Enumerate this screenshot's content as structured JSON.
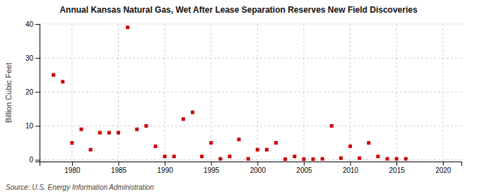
{
  "chart_data": {
    "type": "scatter",
    "title": "Annual Kansas Natural Gas, Wet After Lease Separation Reserves New Field Discoveries",
    "ylabel": "Billion Cubic Feet",
    "source": "Source: U.S. Energy Information Administration",
    "x": [
      1978,
      1979,
      1980,
      1981,
      1982,
      1983,
      1984,
      1985,
      1986,
      1987,
      1988,
      1989,
      1990,
      1991,
      1992,
      1993,
      1994,
      1995,
      1996,
      1997,
      1998,
      1999,
      2000,
      2001,
      2002,
      2003,
      2004,
      2005,
      2006,
      2007,
      2008,
      2009,
      2010,
      2011,
      2012,
      2013,
      2014,
      2015,
      2016
    ],
    "values": [
      25,
      23,
      5,
      9,
      3,
      8,
      8,
      8,
      39,
      9,
      10,
      4,
      1,
      1,
      12,
      14,
      1,
      5,
      0.3,
      1,
      6,
      0.3,
      3,
      3,
      5,
      0.2,
      1,
      0.2,
      0.2,
      0.3,
      10,
      0.5,
      4,
      0.5,
      5,
      1,
      0.3,
      0.3,
      0.3
    ],
    "color": "#cc0000",
    "marker": "square",
    "xlim": [
      1976.5,
      2022
    ],
    "ylim": [
      -0.5,
      40
    ],
    "xticks": [
      1980,
      1985,
      1990,
      1995,
      2000,
      2005,
      2010,
      2015,
      2020
    ],
    "yticks": [
      0,
      10,
      20,
      30,
      40
    ],
    "grid": true
  }
}
